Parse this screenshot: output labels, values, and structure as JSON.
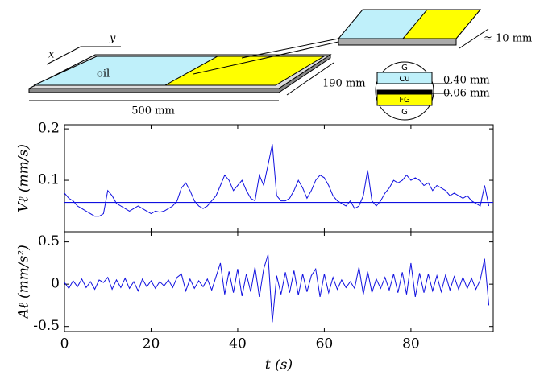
{
  "schematic": {
    "x_axis": "x",
    "y_axis": "y",
    "fluid": "oil",
    "length": "500 mm",
    "width": "190 mm",
    "zoom": "≃ 10 mm",
    "layers": [
      "G",
      "Cu",
      "FG",
      "G"
    ],
    "thickness_top": "0.40 mm",
    "thickness_bottom": "0.06 mm"
  },
  "chart_data": [
    {
      "type": "line",
      "ylabel": "Vℓ (mm/s)",
      "x": [
        0,
        1,
        2,
        3,
        4,
        5,
        6,
        7,
        8,
        9,
        10,
        11,
        12,
        13,
        14,
        15,
        16,
        17,
        18,
        19,
        20,
        21,
        22,
        23,
        24,
        25,
        26,
        27,
        28,
        29,
        30,
        31,
        32,
        33,
        34,
        35,
        36,
        37,
        38,
        39,
        40,
        41,
        42,
        43,
        44,
        45,
        46,
        47,
        48,
        49,
        50,
        51,
        52,
        53,
        54,
        55,
        56,
        57,
        58,
        59,
        60,
        61,
        62,
        63,
        64,
        65,
        66,
        67,
        68,
        69,
        70,
        71,
        72,
        73,
        74,
        75,
        76,
        77,
        78,
        79,
        80,
        81,
        82,
        83,
        84,
        85,
        86,
        87,
        88,
        89,
        90,
        91,
        92,
        93,
        94,
        95,
        96,
        97,
        98
      ],
      "series": [
        {
          "color": "#1010e0",
          "values": [
            0.075,
            0.065,
            0.06,
            0.05,
            0.045,
            0.04,
            0.035,
            0.03,
            0.03,
            0.035,
            0.08,
            0.07,
            0.055,
            0.05,
            0.045,
            0.04,
            0.045,
            0.05,
            0.045,
            0.04,
            0.035,
            0.04,
            0.038,
            0.04,
            0.045,
            0.05,
            0.06,
            0.085,
            0.095,
            0.08,
            0.06,
            0.05,
            0.045,
            0.05,
            0.06,
            0.07,
            0.09,
            0.11,
            0.1,
            0.08,
            0.09,
            0.1,
            0.08,
            0.065,
            0.06,
            0.11,
            0.09,
            0.13,
            0.17,
            0.07,
            0.06,
            0.06,
            0.065,
            0.08,
            0.1,
            0.085,
            0.065,
            0.08,
            0.1,
            0.11,
            0.105,
            0.09,
            0.07,
            0.06,
            0.055,
            0.05,
            0.06,
            0.045,
            0.05,
            0.07,
            0.12,
            0.06,
            0.05,
            0.06,
            0.075,
            0.085,
            0.1,
            0.095,
            0.1,
            0.11,
            0.1,
            0.105,
            0.1,
            0.09,
            0.095,
            0.08,
            0.09,
            0.085,
            0.08,
            0.07,
            0.075,
            0.07,
            0.065,
            0.07,
            0.06,
            0.055,
            0.05,
            0.09,
            0.05
          ]
        }
      ],
      "hline": 0.057,
      "xlim": [
        0,
        99
      ],
      "xticks": [
        0,
        20,
        40,
        60,
        80
      ],
      "ylim": [
        0,
        0.208
      ],
      "yticks": [
        0.1,
        0.2
      ]
    },
    {
      "type": "line",
      "ylabel": "Aℓ (mm/s²)",
      "xlabel": "t (s)",
      "x": [
        0,
        1,
        2,
        3,
        4,
        5,
        6,
        7,
        8,
        9,
        10,
        11,
        12,
        13,
        14,
        15,
        16,
        17,
        18,
        19,
        20,
        21,
        22,
        23,
        24,
        25,
        26,
        27,
        28,
        29,
        30,
        31,
        32,
        33,
        34,
        35,
        36,
        37,
        38,
        39,
        40,
        41,
        42,
        43,
        44,
        45,
        46,
        47,
        48,
        49,
        50,
        51,
        52,
        53,
        54,
        55,
        56,
        57,
        58,
        59,
        60,
        61,
        62,
        63,
        64,
        65,
        66,
        67,
        68,
        69,
        70,
        71,
        72,
        73,
        74,
        75,
        76,
        77,
        78,
        79,
        80,
        81,
        82,
        83,
        84,
        85,
        86,
        87,
        88,
        89,
        90,
        91,
        92,
        93,
        94,
        95,
        96,
        97,
        98
      ],
      "series": [
        {
          "color": "#1010e0",
          "values": [
            0.02,
            -0.05,
            0.04,
            -0.03,
            0.06,
            -0.04,
            0.03,
            -0.06,
            0.05,
            0.02,
            0.08,
            -0.06,
            0.05,
            -0.04,
            0.07,
            -0.05,
            0.03,
            -0.08,
            0.06,
            -0.03,
            0.04,
            -0.05,
            0.03,
            -0.02,
            0.05,
            -0.04,
            0.08,
            0.12,
            -0.08,
            0.06,
            -0.05,
            0.04,
            -0.03,
            0.06,
            -0.07,
            0.09,
            0.25,
            -0.12,
            0.15,
            -0.1,
            0.18,
            -0.14,
            0.12,
            -0.09,
            0.2,
            -0.15,
            0.18,
            0.35,
            -0.45,
            0.1,
            -0.12,
            0.14,
            -0.1,
            0.16,
            -0.13,
            0.12,
            -0.09,
            0.1,
            0.18,
            -0.15,
            0.12,
            -0.1,
            0.08,
            -0.06,
            0.05,
            -0.04,
            0.03,
            -0.05,
            0.2,
            -0.12,
            0.15,
            -0.1,
            0.06,
            -0.05,
            0.08,
            -0.07,
            0.12,
            -0.1,
            0.14,
            -0.12,
            0.25,
            -0.15,
            0.13,
            -0.1,
            0.12,
            -0.08,
            0.1,
            -0.09,
            0.11,
            -0.07,
            0.09,
            -0.06,
            0.08,
            -0.05,
            0.07,
            -0.06,
            0.05,
            0.3,
            -0.25
          ]
        }
      ],
      "xlim": [
        0,
        99
      ],
      "xticks": [
        0,
        20,
        40,
        60,
        80
      ],
      "ylim": [
        -0.56,
        0.62
      ],
      "yticks": [
        -0.5,
        0,
        0.5
      ]
    }
  ]
}
